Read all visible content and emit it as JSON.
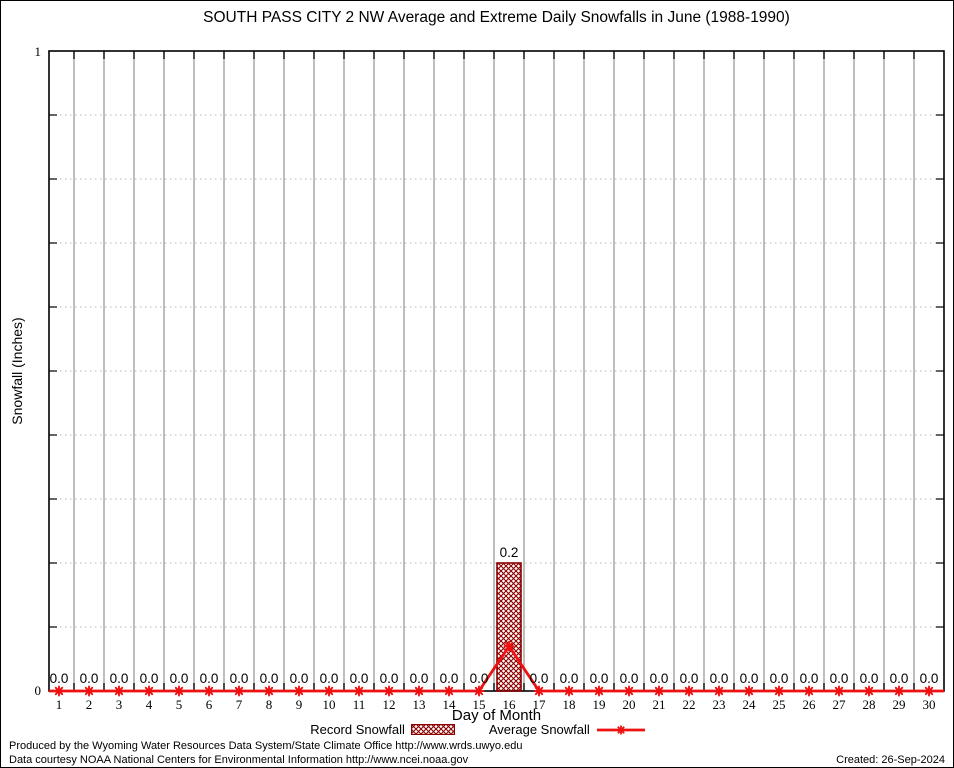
{
  "title": "SOUTH PASS CITY 2 NW Average and Extreme Daily Snowfalls in June (1988-1990)",
  "y_axis": {
    "label": "Snowfall (Inches)",
    "top_tick_label": "1",
    "bottom_tick_label": "0"
  },
  "x_axis": {
    "label": "Day of Month"
  },
  "legend": {
    "record_label": "Record Snowfall",
    "average_label": "Average Snowfall"
  },
  "footer": {
    "line1": "Produced by the Wyoming Water Resources Data System/State Climate Office http://www.wrds.uwyo.edu",
    "line2": "Data courtesy NOAA National Centers for Environmental Information http://www.ncei.noaa.gov",
    "created": "Created: 26-Sep-2024"
  },
  "colors": {
    "record": "#8b0000",
    "average": "#ee1111",
    "grid_vertical": "#bebebe",
    "grid_horizontal": "#b4b4b4",
    "axis": "#000000",
    "label_text": "#000000"
  },
  "chart_data": {
    "type": "bar",
    "title": "SOUTH PASS CITY 2 NW Average and Extreme Daily Snowfalls in June (1988-1990)",
    "xlabel": "Day of Month",
    "ylabel": "Snowfall (Inches)",
    "ylim": [
      0,
      1
    ],
    "y_tick_labels_shown": [
      "0",
      "1"
    ],
    "grid": "vertical solid lines between days; horizontal dotted lines every 0.1",
    "legend_position": "below x-axis label",
    "categories": [
      1,
      2,
      3,
      4,
      5,
      6,
      7,
      8,
      9,
      10,
      11,
      12,
      13,
      14,
      15,
      16,
      17,
      18,
      19,
      20,
      21,
      22,
      23,
      24,
      25,
      26,
      27,
      28,
      29,
      30
    ],
    "series": [
      {
        "name": "Record Snowfall",
        "type": "bar",
        "values": [
          0,
          0,
          0,
          0,
          0,
          0,
          0,
          0,
          0,
          0,
          0,
          0,
          0,
          0,
          0,
          0.2,
          0,
          0,
          0,
          0,
          0,
          0,
          0,
          0,
          0,
          0,
          0,
          0,
          0,
          0
        ]
      },
      {
        "name": "Average Snowfall",
        "type": "line",
        "values": [
          0,
          0,
          0,
          0,
          0,
          0,
          0,
          0,
          0,
          0,
          0,
          0,
          0,
          0,
          0,
          0.07,
          0,
          0,
          0,
          0,
          0,
          0,
          0,
          0,
          0,
          0,
          0,
          0,
          0,
          0
        ]
      }
    ],
    "value_labels": [
      "0.0",
      "0.0",
      "0.0",
      "0.0",
      "0.0",
      "0.0",
      "0.0",
      "0.0",
      "0.0",
      "0.0",
      "0.0",
      "0.0",
      "0.0",
      "0.0",
      "0.0",
      "0.2",
      "0.0",
      "0.0",
      "0.0",
      "0.0",
      "0.0",
      "0.0",
      "0.0",
      "0.0",
      "0.0",
      "0.0",
      "0.0",
      "0.0",
      "0.0",
      "0.0"
    ]
  }
}
